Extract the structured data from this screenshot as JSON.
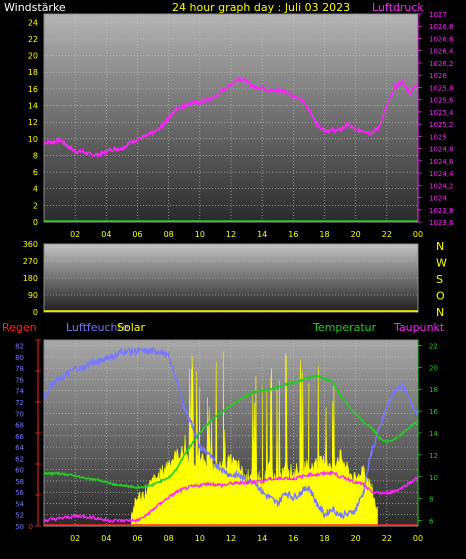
{
  "colors": {
    "yellow": "#ffff00",
    "wind_label": "#ffffff",
    "pressure": "#ff22ff",
    "humidity": "#7777ff",
    "temperature": "#22cc22",
    "rain": "#ff2222",
    "solar": "#ffff00",
    "dewpoint": "#ff22ff",
    "grid": "#c8c8c8"
  },
  "chart_data": [
    {
      "type": "line",
      "title": "24 hour graph day : Juli 03 2023",
      "left_label": "Windstärke",
      "right_label": "Luftdruck",
      "x_ticks": [
        "02",
        "04",
        "06",
        "08",
        "10",
        "12",
        "14",
        "16",
        "18",
        "20",
        "22",
        "00"
      ],
      "x_range": [
        0,
        24
      ],
      "y_left": {
        "ticks": [
          "0",
          "2",
          "4",
          "6",
          "8",
          "10",
          "12",
          "14",
          "16",
          "18",
          "20",
          "22",
          "24"
        ],
        "range": [
          0,
          25
        ]
      },
      "y_right": {
        "ticks": [
          "1027",
          "1026,8",
          "1026,6",
          "1026,4",
          "1026,2",
          "1026",
          "1025,8",
          "1025,6",
          "1025,4",
          "1025,2",
          "1025",
          "1024,8",
          "1024,6",
          "1024,4",
          "1024,2",
          "1024",
          "1023,8",
          "1023,6"
        ],
        "range": [
          1023.6,
          1027
        ]
      },
      "series": [
        {
          "name": "Luftdruck",
          "axis": "right",
          "x": [
            0,
            0.5,
            1,
            1.5,
            2,
            2.5,
            3,
            3.5,
            4,
            4.5,
            5,
            5.5,
            6,
            6.5,
            7,
            7.5,
            8,
            8.5,
            9,
            9.5,
            10,
            10.5,
            11,
            11.5,
            12,
            12.5,
            13,
            13.5,
            14,
            14.5,
            15,
            15.5,
            16,
            16.5,
            17,
            17.5,
            18,
            18.5,
            19,
            19.5,
            20,
            20.5,
            21,
            21.5,
            22,
            22.5,
            23,
            23.5,
            24
          ],
          "y": [
            1024.9,
            1024.9,
            1024.95,
            1024.85,
            1024.75,
            1024.75,
            1024.7,
            1024.7,
            1024.75,
            1024.8,
            1024.8,
            1024.9,
            1024.95,
            1025.0,
            1025.05,
            1025.15,
            1025.3,
            1025.45,
            1025.5,
            1025.55,
            1025.55,
            1025.6,
            1025.65,
            1025.75,
            1025.85,
            1025.95,
            1025.9,
            1025.8,
            1025.8,
            1025.75,
            1025.75,
            1025.75,
            1025.65,
            1025.6,
            1025.45,
            1025.2,
            1025.1,
            1025.1,
            1025.1,
            1025.2,
            1025.1,
            1025.1,
            1025.05,
            1025.15,
            1025.5,
            1025.8,
            1025.9,
            1025.7,
            1025.9
          ]
        },
        {
          "name": "Windstärke",
          "axis": "left",
          "x": [
            0,
            24
          ],
          "y": [
            0,
            0
          ]
        }
      ]
    },
    {
      "type": "scatter",
      "right_labels": [
        "N",
        "W",
        "S",
        "O",
        "N"
      ],
      "x_range": [
        0,
        24
      ],
      "y_ticks": [
        "360",
        "270",
        "180",
        "90",
        "0"
      ],
      "y_range": [
        0,
        360
      ],
      "series": [
        {
          "name": "",
          "x": [
            0,
            24
          ],
          "y": [
            0,
            0
          ]
        }
      ]
    },
    {
      "type": "line",
      "labels": [
        "Regen",
        "Luftfeuchte",
        "Solar",
        "Temperatur",
        "Taupunkt"
      ],
      "x_ticks": [
        "02",
        "04",
        "06",
        "08",
        "10",
        "12",
        "14",
        "16",
        "18",
        "20",
        "22",
        "00"
      ],
      "x_range": [
        0,
        24
      ],
      "y_rain": {
        "ticks": [
          "0"
        ],
        "range": [
          0,
          1
        ]
      },
      "y_humidity": {
        "ticks": [
          "82",
          "80",
          "78",
          "76",
          "74",
          "72",
          "70",
          "68",
          "66",
          "64",
          "62",
          "60",
          "58",
          "56",
          "54",
          "52",
          "50"
        ],
        "range": [
          50,
          83
        ]
      },
      "y_temperature": {
        "ticks": [
          "22",
          "20",
          "18",
          "16",
          "14",
          "12",
          "10",
          "8",
          "6"
        ],
        "range": [
          5.5,
          22.5
        ]
      },
      "series": [
        {
          "name": "Luftfeuchte",
          "axis": "humidity",
          "x": [
            0,
            0.5,
            1,
            1.5,
            2,
            2.5,
            3,
            3.5,
            4,
            4.5,
            5,
            5.5,
            6,
            6.5,
            7,
            7.5,
            8,
            8.5,
            9,
            9.5,
            10,
            10.5,
            11,
            11.5,
            12,
            12.5,
            13,
            13.5,
            14,
            14.5,
            15,
            15.5,
            16,
            16.5,
            17,
            17.5,
            18,
            18.5,
            19,
            19.5,
            20,
            20.5,
            21,
            21.5,
            22,
            22.5,
            23,
            23.5,
            24
          ],
          "y": [
            73,
            75,
            76,
            77,
            78,
            78,
            79,
            79,
            80,
            80,
            81,
            81,
            81,
            81,
            81,
            81,
            80,
            76,
            71,
            68,
            64,
            63,
            61,
            60,
            59,
            59,
            58,
            58,
            56,
            55,
            54,
            56,
            55,
            56,
            57,
            54,
            52,
            53,
            52,
            52,
            53,
            56,
            63,
            67,
            71,
            74,
            75,
            72,
            70
          ]
        },
        {
          "name": "Temperatur",
          "axis": "temperature",
          "x": [
            0,
            0.5,
            1,
            1.5,
            2,
            2.5,
            3,
            3.5,
            4,
            4.5,
            5,
            5.5,
            6,
            6.5,
            7,
            7.5,
            8,
            8.5,
            9,
            9.5,
            10,
            10.5,
            11,
            11.5,
            12,
            12.5,
            13,
            13.5,
            14,
            14.5,
            15,
            15.5,
            16,
            16.5,
            17,
            17.5,
            18,
            18.5,
            19,
            19.5,
            20,
            20.5,
            21,
            21.5,
            22,
            22.5,
            23,
            23.5,
            24
          ],
          "y": [
            10.3,
            10.3,
            10.3,
            10.2,
            10.1,
            9.9,
            9.8,
            9.7,
            9.5,
            9.3,
            9.2,
            9.1,
            9.0,
            9.1,
            9.3,
            9.6,
            9.9,
            10.7,
            12.0,
            13.0,
            14.0,
            14.8,
            15.5,
            16.0,
            16.5,
            17.0,
            17.4,
            17.7,
            17.9,
            18.0,
            18.2,
            18.4,
            18.6,
            18.8,
            19.1,
            19.2,
            19.0,
            18.7,
            17.5,
            16.5,
            15.8,
            15.0,
            14.5,
            13.6,
            13.2,
            13.4,
            14.0,
            14.6,
            15.1
          ]
        },
        {
          "name": "Taupunkt",
          "axis": "temperature",
          "x": [
            0,
            0.5,
            1,
            1.5,
            2,
            2.5,
            3,
            3.5,
            4,
            4.5,
            5,
            5.5,
            6,
            6.5,
            7,
            7.5,
            8,
            8.5,
            9,
            9.5,
            10,
            10.5,
            11,
            11.5,
            12,
            12.5,
            13,
            13.5,
            14,
            14.5,
            15,
            15.5,
            16,
            16.5,
            17,
            17.5,
            18,
            18.5,
            19,
            19.5,
            20,
            20.5,
            21,
            21.5,
            22,
            22.5,
            23,
            23.5,
            24
          ],
          "y": [
            6.0,
            6.1,
            6.2,
            6.3,
            6.4,
            6.4,
            6.3,
            6.2,
            6.0,
            6.0,
            6.0,
            6.0,
            6.0,
            6.4,
            7.0,
            7.6,
            8.1,
            8.6,
            8.9,
            9.1,
            9.2,
            9.4,
            9.3,
            9.2,
            9.4,
            9.4,
            9.5,
            9.6,
            9.6,
            9.8,
            9.8,
            9.9,
            9.8,
            10.0,
            10.2,
            10.2,
            10.3,
            10.4,
            10.0,
            9.8,
            9.5,
            9.3,
            8.6,
            8.5,
            8.5,
            8.7,
            9.0,
            9.5,
            9.9
          ]
        },
        {
          "name": "Solar",
          "x": [
            5.6,
            6.0,
            6.5,
            7.0,
            7.5,
            8.0,
            8.5,
            9.0,
            9.5,
            10.0,
            10.5,
            11.0,
            11.5,
            12.0,
            12.5,
            13.0,
            13.5,
            14.0,
            14.5,
            15.0,
            15.5,
            16.0,
            16.5,
            17.0,
            17.5,
            18.0,
            18.5,
            19.0,
            19.5,
            20.0,
            20.5,
            21.0,
            21.4
          ],
          "y": [
            0.06,
            0.15,
            0.18,
            0.24,
            0.28,
            0.34,
            0.38,
            0.4,
            0.95,
            0.35,
            0.36,
            0.3,
            0.96,
            0.35,
            0.32,
            0.25,
            0.92,
            0.22,
            0.9,
            0.22,
            0.95,
            0.28,
            0.88,
            0.32,
            0.98,
            0.35,
            0.82,
            0.38,
            0.3,
            0.24,
            0.32,
            0.2,
            0.08
          ]
        },
        {
          "name": "Regen",
          "axis": "rain",
          "x": [
            0,
            24
          ],
          "y": [
            0,
            0
          ]
        }
      ]
    }
  ]
}
